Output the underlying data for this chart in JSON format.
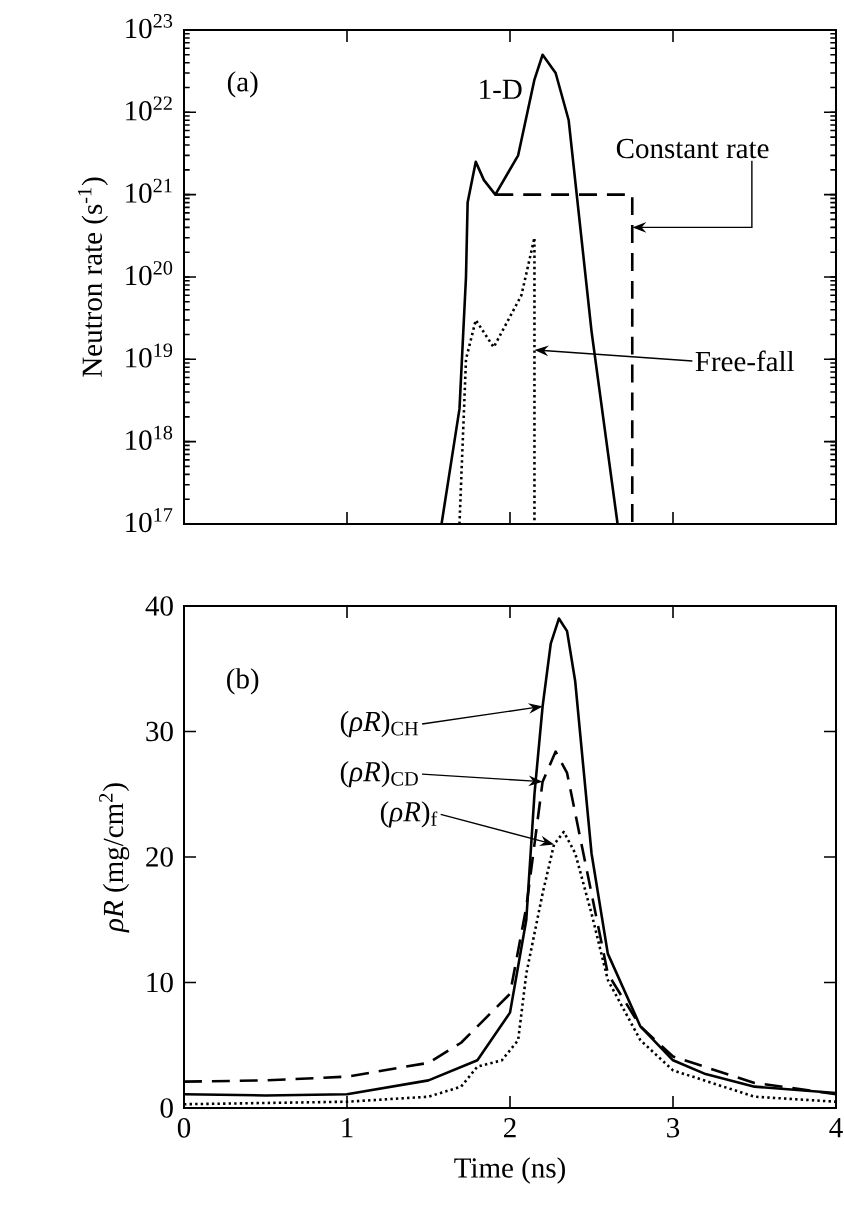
{
  "chart_data": [
    {
      "type": "line",
      "ylabel": "Neutron rate (s$^{-1}$)",
      "log": "y",
      "xlim": [
        0,
        4
      ],
      "ylim": [
        1e+17,
        1e+23
      ],
      "tick_labels": "y",
      "xticks": [
        {
          "value": 0,
          "label": null
        },
        {
          "value": 1,
          "label": null
        },
        {
          "value": 2,
          "label": null
        },
        {
          "value": 3,
          "label": null
        },
        {
          "value": 4,
          "label": null
        }
      ],
      "yticks": [
        {
          "value": 1e+17,
          "label": "10$^{17}$"
        },
        {
          "value": 1e+18,
          "label": "10$^{18}$"
        },
        {
          "value": 1e+19,
          "label": "10$^{19}$"
        },
        {
          "value": 1e+20,
          "label": "10$^{20}$"
        },
        {
          "value": 1e+21,
          "label": "10$^{21}$"
        },
        {
          "value": 1e+22,
          "label": "10$^{22}$"
        },
        {
          "value": 1e+23,
          "label": "10$^{23}$"
        }
      ],
      "annotations": [
        "(a)",
        "1-D",
        {
          "text": "Constant rate",
          "x": 2.75,
          "y": 4e+20
        },
        {
          "text": "Free-fall",
          "x": 2.15,
          "y": 1.3e+19
        }
      ],
      "series": [
        {
          "color": "#000000",
          "line_style": "solid",
          "x": [
            1.58,
            1.69,
            1.73,
            1.74,
            1.79,
            1.84,
            1.91,
            2.05,
            2.15,
            2.2,
            2.28,
            2.36,
            2.5,
            2.66
          ],
          "values": [
            1e+17,
            2.5e+18,
            1e+20,
            8e+20,
            2.5e+21,
            1.5e+21,
            1e+21,
            3e+21,
            2.5e+22,
            5e+22,
            3e+22,
            8e+21,
            2.2e+19,
            1e+17
          ]
        },
        {
          "color": "#000000",
          "line_style": "dashed",
          "x": [
            1.91,
            2.75,
            2.75
          ],
          "values": [
            1e+21,
            1e+21,
            1e+17
          ]
        },
        {
          "color": "#000000",
          "line_style": "dotted",
          "x": [
            1.69,
            1.73,
            1.79,
            1.9,
            2.07,
            2.15,
            2.15
          ],
          "values": [
            1e+17,
            1e+19,
            3e+19,
            1.4e+19,
            6e+19,
            3e+20,
            1e+17
          ]
        }
      ]
    },
    {
      "type": "line",
      "xlabel": "Time (ns)",
      "ylabel": "*ρR* (mg/cm$^{2}$)",
      "xlim": [
        0,
        4
      ],
      "ylim": [
        0,
        40
      ],
      "xticks": [
        0,
        1,
        2,
        3,
        4
      ],
      "yticks": [
        0,
        10,
        20,
        30,
        40
      ],
      "annotations": [
        "(b)",
        {
          "text": "(*ρR*)$_{CH}$",
          "x": 2.2,
          "y": 32
        },
        "(*ρR*)$_{CD}$",
        {
          "text": "(*ρR*)$_{f}$",
          "x": 2.27,
          "y": 21
        }
      ],
      "series": [
        {
          "color": "#000000",
          "line_style": "solid",
          "x": [
            0,
            0.5,
            1,
            1.5,
            1.8,
            2.0,
            2.1,
            2.15,
            2.2,
            2.25,
            2.3,
            2.35,
            2.4,
            2.5,
            2.6,
            2.8,
            3.0,
            3.2,
            3.5,
            4.0
          ],
          "values": [
            1.1,
            1.0,
            1.1,
            2.2,
            3.8,
            7.6,
            15,
            25,
            32,
            37,
            39,
            38,
            34,
            20.3,
            12.3,
            6.5,
            3.8,
            2.7,
            1.7,
            1.2
          ]
        },
        {
          "color": "#000000",
          "line_style": "dashed",
          "x": [
            0,
            0.5,
            1,
            1.5,
            1.7,
            2.0,
            2.1,
            2.2,
            2.28,
            2.35,
            2.4,
            2.5,
            2.6,
            2.8,
            3.0,
            3.5,
            4.0
          ],
          "values": [
            2.1,
            2.2,
            2.5,
            3.6,
            5.2,
            9.1,
            16,
            26,
            28.4,
            26.7,
            23.5,
            17.1,
            10.7,
            6.5,
            4.1,
            2.0,
            1.1
          ]
        },
        {
          "color": "#000000",
          "line_style": "dotted",
          "x": [
            0,
            0.5,
            1,
            1.5,
            1.7,
            1.8,
            1.95,
            2.05,
            2.1,
            2.2,
            2.27,
            2.33,
            2.4,
            2.5,
            2.6,
            2.8,
            3.0,
            3.5,
            4.0
          ],
          "values": [
            0.3,
            0.4,
            0.5,
            0.9,
            1.7,
            3.3,
            3.8,
            5.4,
            10.7,
            17.1,
            21,
            22,
            20.3,
            15.5,
            10.2,
            5.4,
            3.0,
            0.9,
            0.5
          ]
        }
      ]
    }
  ]
}
